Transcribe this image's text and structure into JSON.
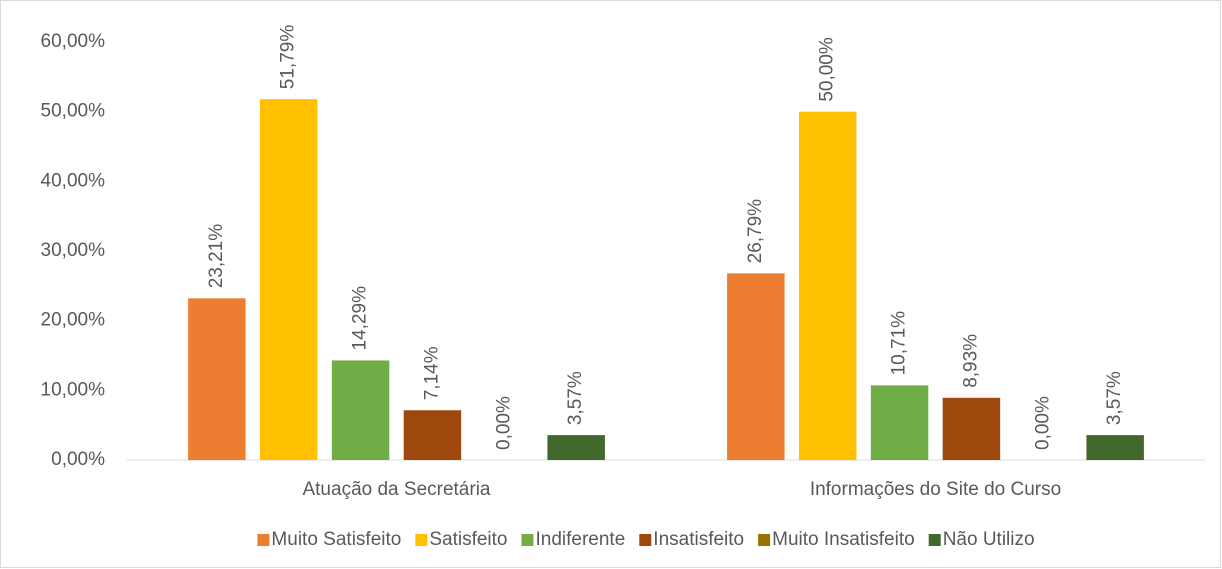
{
  "chart_data": {
    "type": "bar",
    "categories": [
      "Atuação da Secretária",
      "Informações do Site do Curso"
    ],
    "series": [
      {
        "name": "Muito Satisfeito",
        "color": "#ed7d31",
        "values": [
          23.21,
          26.79
        ],
        "value_labels": [
          "23,21%",
          "26,79%"
        ]
      },
      {
        "name": "Satisfeito",
        "color": "#ffc000",
        "values": [
          51.79,
          50.0
        ],
        "value_labels": [
          "51,79%",
          "50,00%"
        ]
      },
      {
        "name": "Indiferente",
        "color": "#70ad47",
        "values": [
          14.29,
          10.71
        ],
        "value_labels": [
          "14,29%",
          "10,71%"
        ]
      },
      {
        "name": "Insatisfeito",
        "color": "#9e480e",
        "values": [
          7.14,
          8.93
        ],
        "value_labels": [
          "7,14%",
          "8,93%"
        ]
      },
      {
        "name": "Muito Insatisfeito",
        "color": "#997300",
        "values": [
          0,
          0
        ],
        "value_labels": [
          "0,00%",
          "0,00%"
        ]
      },
      {
        "name": "Não Utilizo",
        "color": "#43682b",
        "values": [
          3.57,
          3.57
        ],
        "value_labels": [
          "3,57%",
          "3,57%"
        ]
      }
    ],
    "ylim": [
      0,
      60
    ],
    "yticks": [
      {
        "value": 0,
        "label": "0,00%"
      },
      {
        "value": 10,
        "label": "10,00%"
      },
      {
        "value": 20,
        "label": "20,00%"
      },
      {
        "value": 30,
        "label": "30,00%"
      },
      {
        "value": 40,
        "label": "40,00%"
      },
      {
        "value": 50,
        "label": "50,00%"
      },
      {
        "value": 60,
        "label": "60,00%"
      }
    ],
    "grid": false,
    "legend": "bottom"
  }
}
